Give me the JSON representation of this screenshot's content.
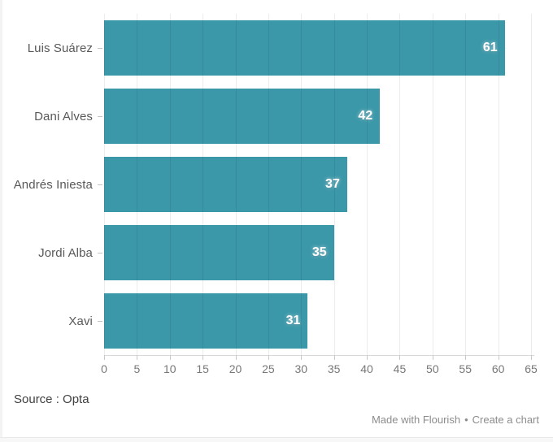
{
  "chart_data": {
    "type": "bar",
    "orientation": "horizontal",
    "title": "",
    "categories": [
      "Luis Suárez",
      "Dani Alves",
      "Andrés Iniesta",
      "Jordi Alba",
      "Xavi"
    ],
    "values": [
      61,
      42,
      37,
      35,
      31
    ],
    "value_labels": [
      "61",
      "42",
      "37",
      "35",
      "31"
    ],
    "xlim": [
      0,
      65
    ],
    "x_ticks": [
      0,
      5,
      10,
      15,
      20,
      25,
      30,
      35,
      40,
      45,
      50,
      55,
      60,
      65
    ],
    "grid": "vertical",
    "legend_position": "none",
    "bar_color": "#3b98a9",
    "value_label_color": "#ffffff",
    "category_label_color": "#595959",
    "tick_label_color": "#787878"
  },
  "footer": {
    "source": "Source : Opta",
    "credit_made": "Made with Flourish",
    "credit_separator": "•",
    "credit_create": "Create a chart"
  }
}
